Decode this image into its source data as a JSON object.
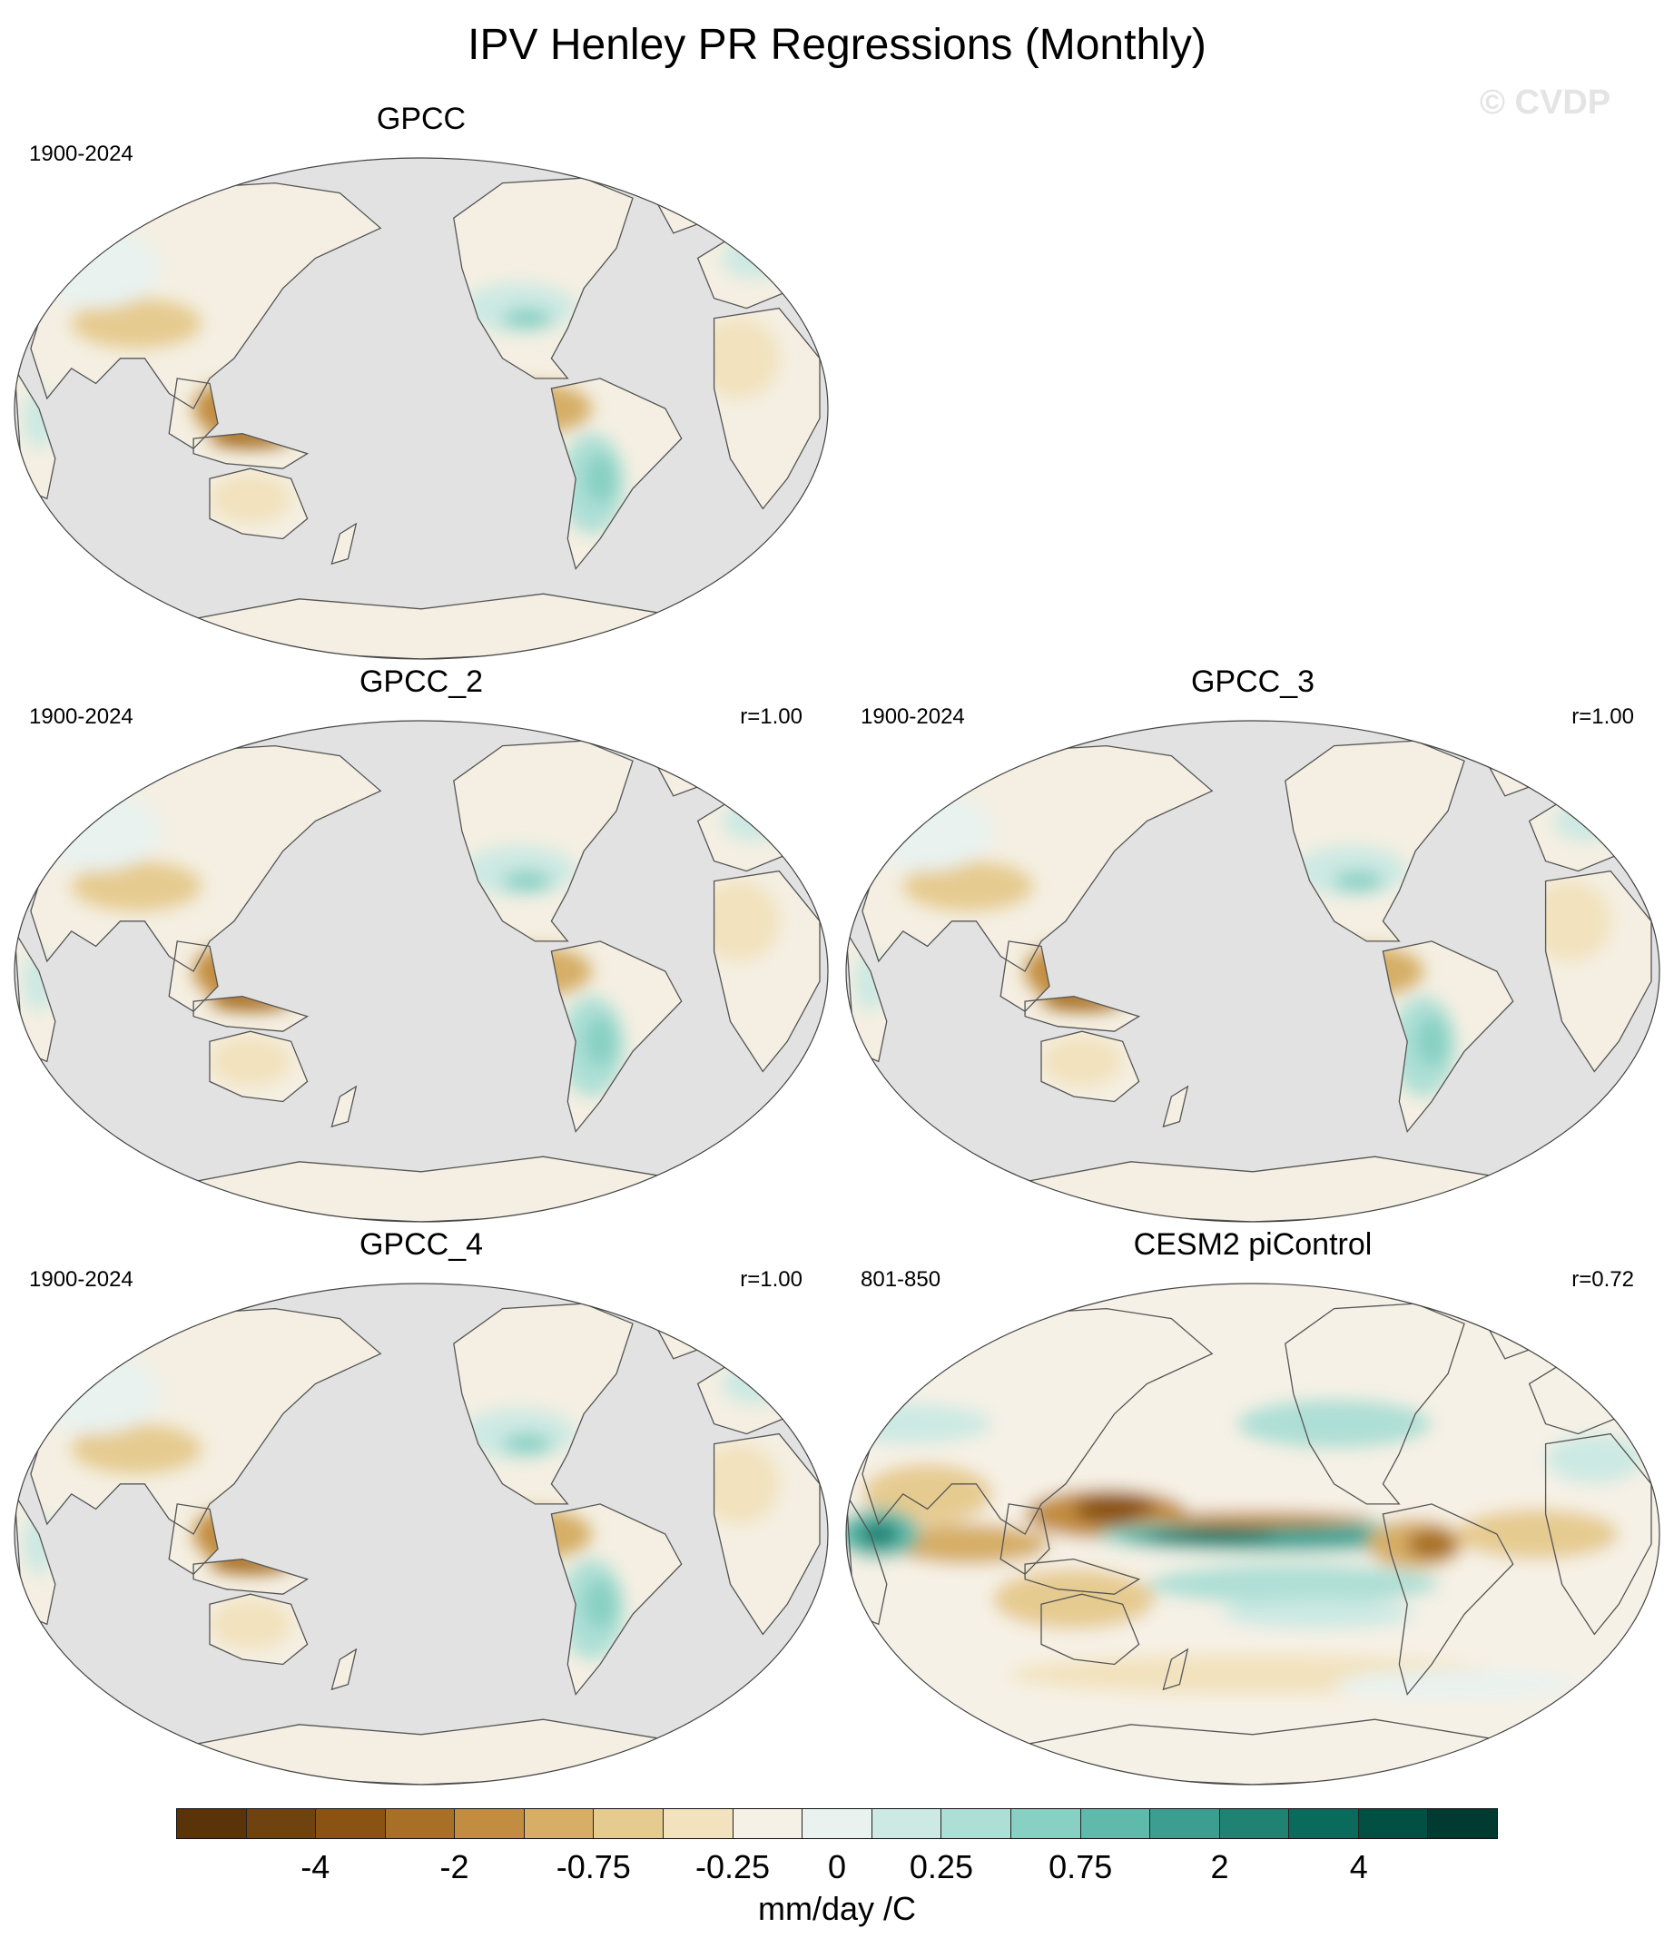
{
  "title": "IPV Henley PR Regressions (Monthly)",
  "watermark": "© CVDP",
  "panels": [
    {
      "title": "GPCC",
      "years": "1900-2024",
      "r": "",
      "style": "obs"
    },
    {
      "title": "GPCC_2",
      "years": "1900-2024",
      "r": "r=1.00",
      "style": "obs"
    },
    {
      "title": "GPCC_3",
      "years": "1900-2024",
      "r": "r=1.00",
      "style": "obs"
    },
    {
      "title": "GPCC_4",
      "years": "1900-2024",
      "r": "r=1.00",
      "style": "obs"
    },
    {
      "title": "CESM2 piControl",
      "years": "801-850",
      "r": "r=0.72",
      "style": "model"
    }
  ],
  "colorbar": {
    "colors": [
      "#5a3309",
      "#6f4310",
      "#8a5314",
      "#a86f27",
      "#c28d41",
      "#d6ae66",
      "#e6cb90",
      "#f2e2bd",
      "#f6f1e6",
      "#e9f2ef",
      "#cce9e3",
      "#aedfd6",
      "#87d0c3",
      "#5fbaab",
      "#3b9e90",
      "#1f8273",
      "#0a6a5c",
      "#024f43",
      "#003a30"
    ],
    "tick_labels": [
      "-4",
      "-2",
      "-0.75",
      "-0.25",
      "0",
      "0.25",
      "0.75",
      "2",
      "4"
    ],
    "units": "mm/day /C"
  }
}
